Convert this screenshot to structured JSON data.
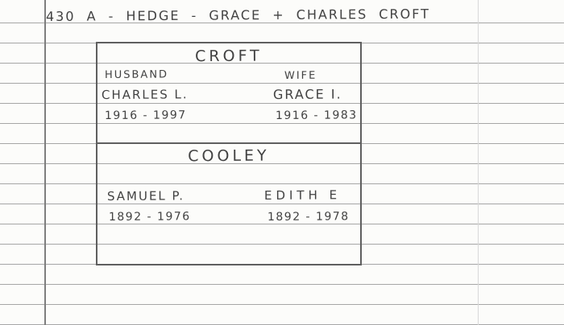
{
  "header": {
    "title": "430 A - HEDGE - GRACE + CHARLES CROFT"
  },
  "card": {
    "croft": {
      "surname": "CROFT",
      "husband_label": "HUSBAND",
      "wife_label": "WIFE",
      "husband_name": "CHARLES L.",
      "wife_name": "GRACE I.",
      "husband_years": "1916 - 1997",
      "wife_years": "1916 - 1983"
    },
    "cooley": {
      "surname": "COOLEY",
      "husband_name": "SAMUEL P.",
      "wife_name": "EDITH E",
      "husband_years": "1892 - 1976",
      "wife_years": "1892 - 1978"
    }
  },
  "colors": {
    "paper": "#fcfcfa",
    "rule_line": "#a6a6a6",
    "margin_line": "#7e7e7e",
    "faint_line": "#d9d9d9",
    "ink": "#424242",
    "card_border": "#5f5f5f"
  }
}
